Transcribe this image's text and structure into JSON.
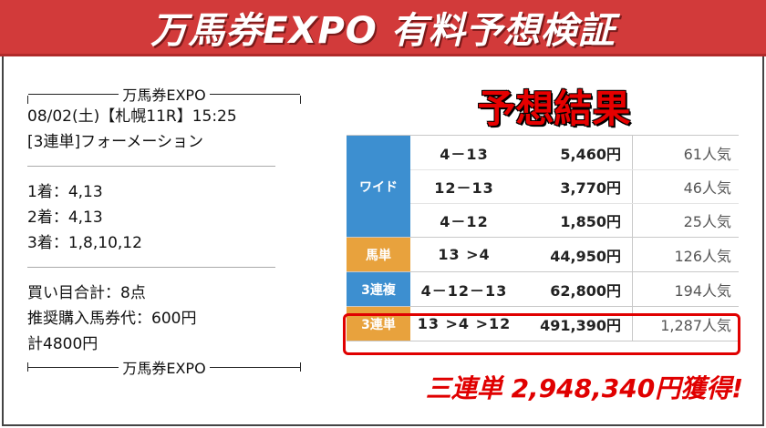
{
  "banner": {
    "title": "万馬券EXPO 有料予想検証"
  },
  "ticket": {
    "header_label": "万馬券EXPO",
    "race_line": "08/02(土)【札幌11R】15:25",
    "bet_type": "[3連単]フォーメーション",
    "first": "1着：4,13",
    "second": "2着：4,13",
    "third": "3着：1,8,10,12",
    "points": "買い目合計：8点",
    "unit_price": "推奨購入馬券代：600円",
    "total": "計4800円",
    "footer_label": "万馬券EXPO"
  },
  "result": {
    "heading": "予想結果",
    "groups": [
      {
        "category": "ワイド",
        "color": "#3d8fd0",
        "rows": [
          {
            "combo": "4－13",
            "payout": "5,460円",
            "popularity": "61人気"
          },
          {
            "combo": "12－13",
            "payout": "3,770円",
            "popularity": "46人気"
          },
          {
            "combo": "4－12",
            "payout": "1,850円",
            "popularity": "25人気"
          }
        ]
      },
      {
        "category": "馬単",
        "color": "#e8a23d",
        "rows": [
          {
            "combo": "13 >4",
            "payout": "44,950円",
            "popularity": "126人気"
          }
        ]
      },
      {
        "category": "3連複",
        "color": "#3d8fd0",
        "rows": [
          {
            "combo": "4－12－13",
            "payout": "62,800円",
            "popularity": "194人気"
          }
        ]
      },
      {
        "category": "3連単",
        "color": "#e8a23d",
        "rows": [
          {
            "combo": "13 >4 >12",
            "payout": "491,390円",
            "popularity": "1,287人気"
          }
        ]
      }
    ],
    "winnings": "三連単 2,948,340円獲得!",
    "highlight_color": "#e00000"
  }
}
